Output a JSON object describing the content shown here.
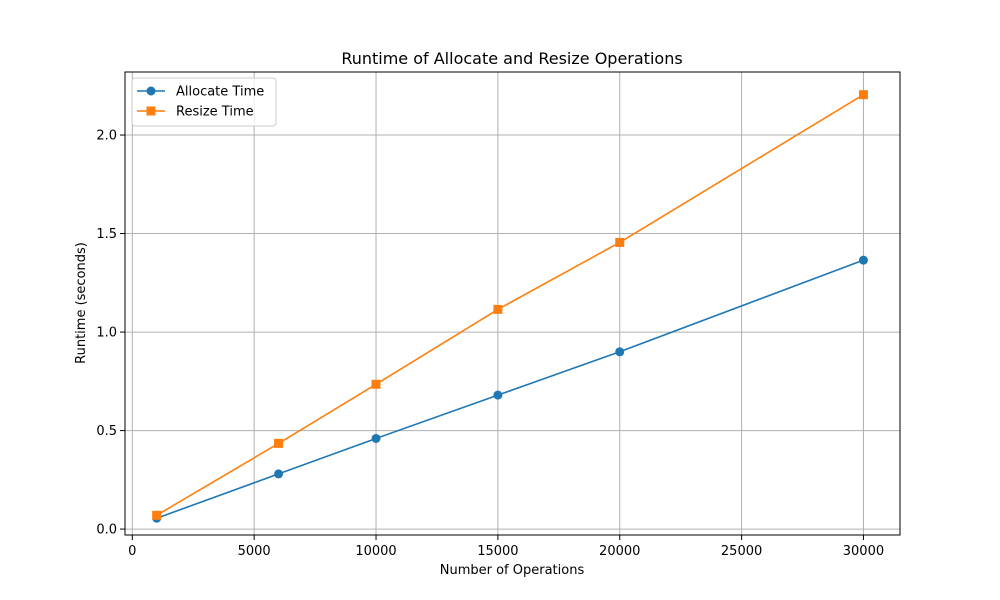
{
  "chart_data": {
    "type": "line",
    "title": "Runtime of Allocate and Resize Operations",
    "xlabel": "Number of Operations",
    "ylabel": "Runtime (seconds)",
    "xlim": [
      -300,
      31500
    ],
    "ylim": [
      -0.03,
      2.32
    ],
    "xticks": [
      0,
      5000,
      10000,
      15000,
      20000,
      25000,
      30000
    ],
    "xtick_labels": [
      "0",
      "5000",
      "10000",
      "15000",
      "20000",
      "25000",
      "30000"
    ],
    "yticks": [
      0.0,
      0.5,
      1.0,
      1.5,
      2.0
    ],
    "ytick_labels": [
      "0.0",
      "0.5",
      "1.0",
      "1.5",
      "2.0"
    ],
    "grid": true,
    "legend_position": "top-left",
    "x": [
      1000,
      6000,
      10000,
      15000,
      20000,
      30000
    ],
    "series": [
      {
        "name": "Allocate Time",
        "color": "#1f77b4",
        "marker": "circle",
        "values": [
          0.055,
          0.28,
          0.46,
          0.68,
          0.9,
          1.365
        ]
      },
      {
        "name": "Resize Time",
        "color": "#ff7f0e",
        "marker": "square",
        "values": [
          0.07,
          0.435,
          0.735,
          1.115,
          1.455,
          2.205
        ]
      }
    ]
  }
}
